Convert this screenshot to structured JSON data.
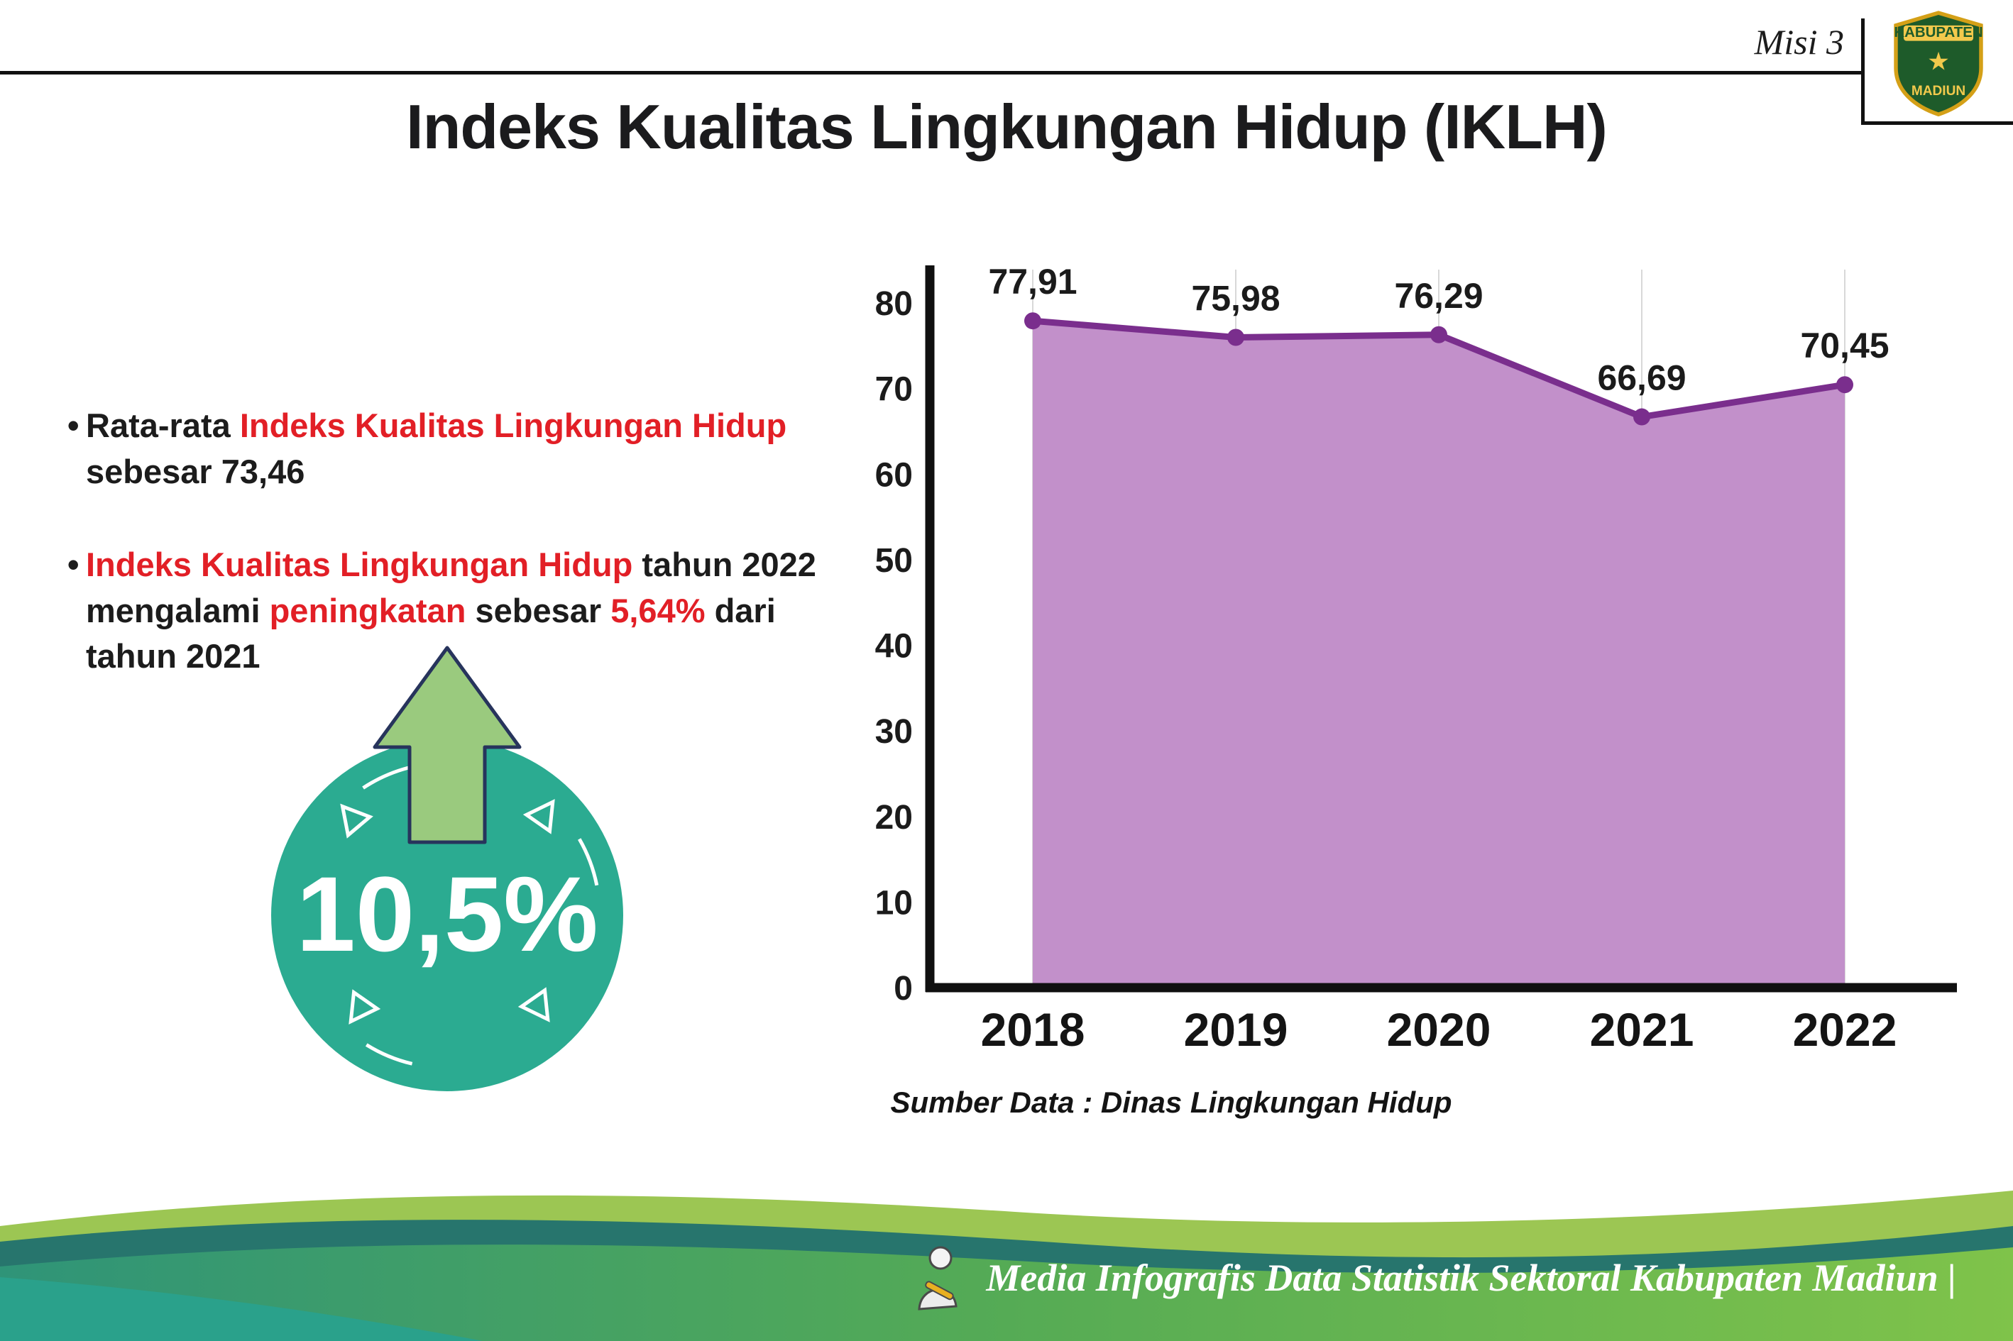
{
  "header": {
    "misi": "Misi 3",
    "title": "Indeks Kualitas Lingkungan Hidup (IKLH)"
  },
  "logo": {
    "top_text": "KABUPATEN",
    "bottom_text": "MADIUN"
  },
  "bullets": [
    {
      "segments": [
        {
          "text": "Rata-rata ",
          "red": false
        },
        {
          "text": "Indeks Kualitas Lingkungan Hidup",
          "red": true
        },
        {
          "text": " sebesar 73,46",
          "red": false
        }
      ]
    },
    {
      "segments": [
        {
          "text": "Indeks Kualitas Lingkungan Hidup",
          "red": true
        },
        {
          "text": " tahun 2022 mengalami ",
          "red": false
        },
        {
          "text": "peningkatan",
          "red": true
        },
        {
          "text": " sebesar ",
          "red": false
        },
        {
          "text": "5,64%",
          "red": true
        },
        {
          "text": " dari tahun 2021",
          "red": false
        }
      ]
    }
  ],
  "badge": {
    "value": "10,5%"
  },
  "chart_data": {
    "type": "area",
    "title": "Indeks Kualitas Lingkungan Hidup (IKLH)",
    "categories": [
      "2018",
      "2019",
      "2020",
      "2021",
      "2022"
    ],
    "values": [
      77.91,
      75.98,
      76.29,
      66.69,
      70.45
    ],
    "value_labels": [
      "77,91",
      "75,98",
      "76,29",
      "66,69",
      "70,45"
    ],
    "ylim": [
      0,
      80
    ],
    "ytick_step": 10,
    "grid": "vertical-light",
    "legend": "none",
    "line_color": "#7a2e8d",
    "marker_color": "#7a2e8d",
    "fill_color": "#c290ca",
    "source_note": "Sumber Data : Dinas Lingkungan Hidup"
  },
  "footer": {
    "text": "Media Infografis Data Statistik Sektoral Kabupaten Madiun |"
  },
  "colors": {
    "red": "#e21f26",
    "badge_teal": "#2bab91",
    "arrow_green": "#9aca7e",
    "arrow_outline": "#27345c",
    "line_purple": "#7a2e8d",
    "fill_purple": "#c290ca",
    "footer_dark_teal": "#27756d",
    "footer_green": "#7fc34a"
  }
}
